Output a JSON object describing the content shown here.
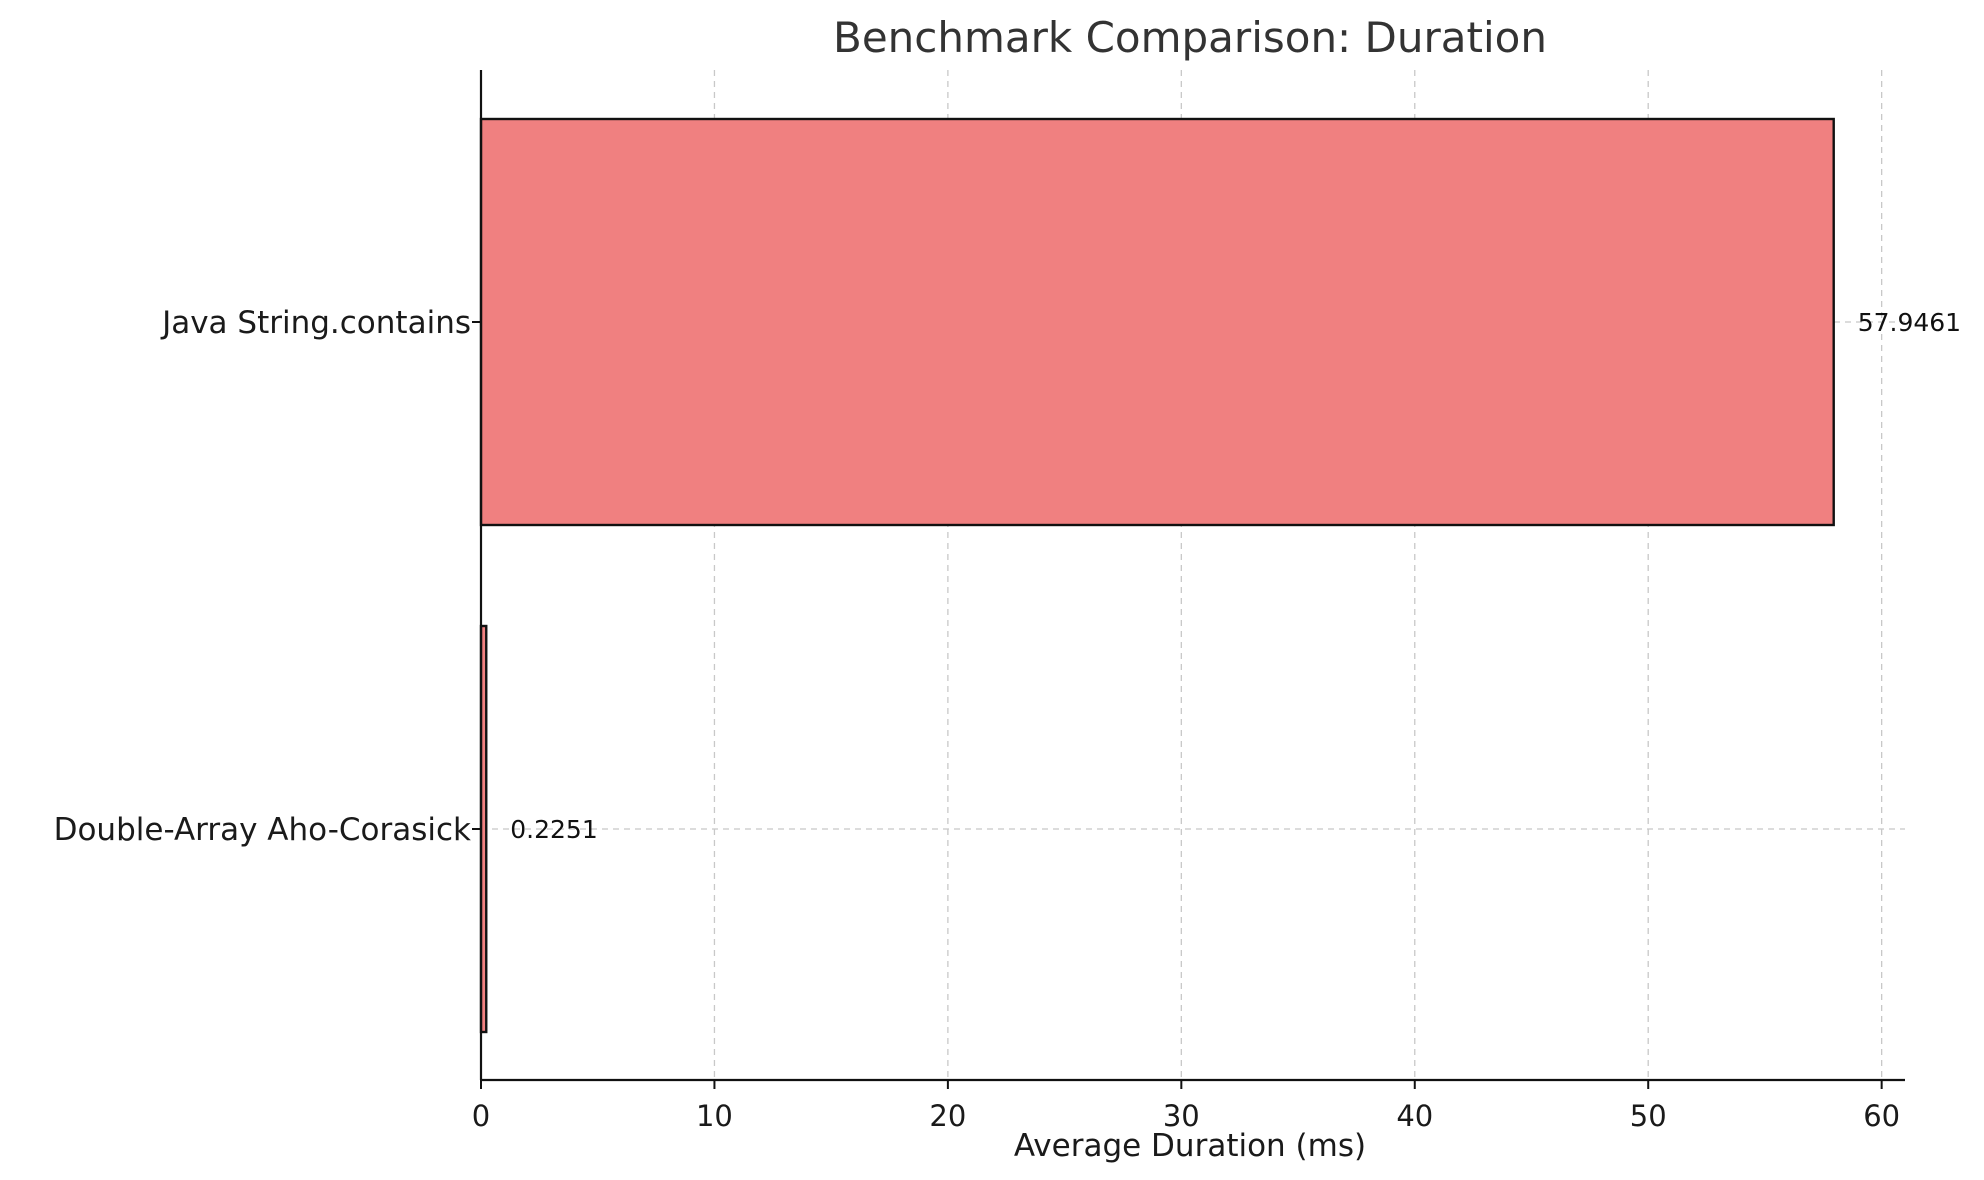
{
  "chart_data": {
    "type": "bar",
    "orientation": "horizontal",
    "title": "Benchmark Comparison: Duration",
    "xlabel": "Average Duration (ms)",
    "ylabel": "",
    "xlim": [
      0,
      61
    ],
    "xticks": [
      0,
      10,
      20,
      30,
      40,
      50,
      60
    ],
    "categories": [
      "Double-Array Aho-Corasick",
      "Java String.contains"
    ],
    "values": [
      0.2251,
      57.9461
    ],
    "value_labels": [
      "0.2251",
      "57.9461"
    ],
    "bar_color": "#f08080",
    "bar_edge_color": "#111111",
    "grid": true,
    "legend": "none"
  }
}
